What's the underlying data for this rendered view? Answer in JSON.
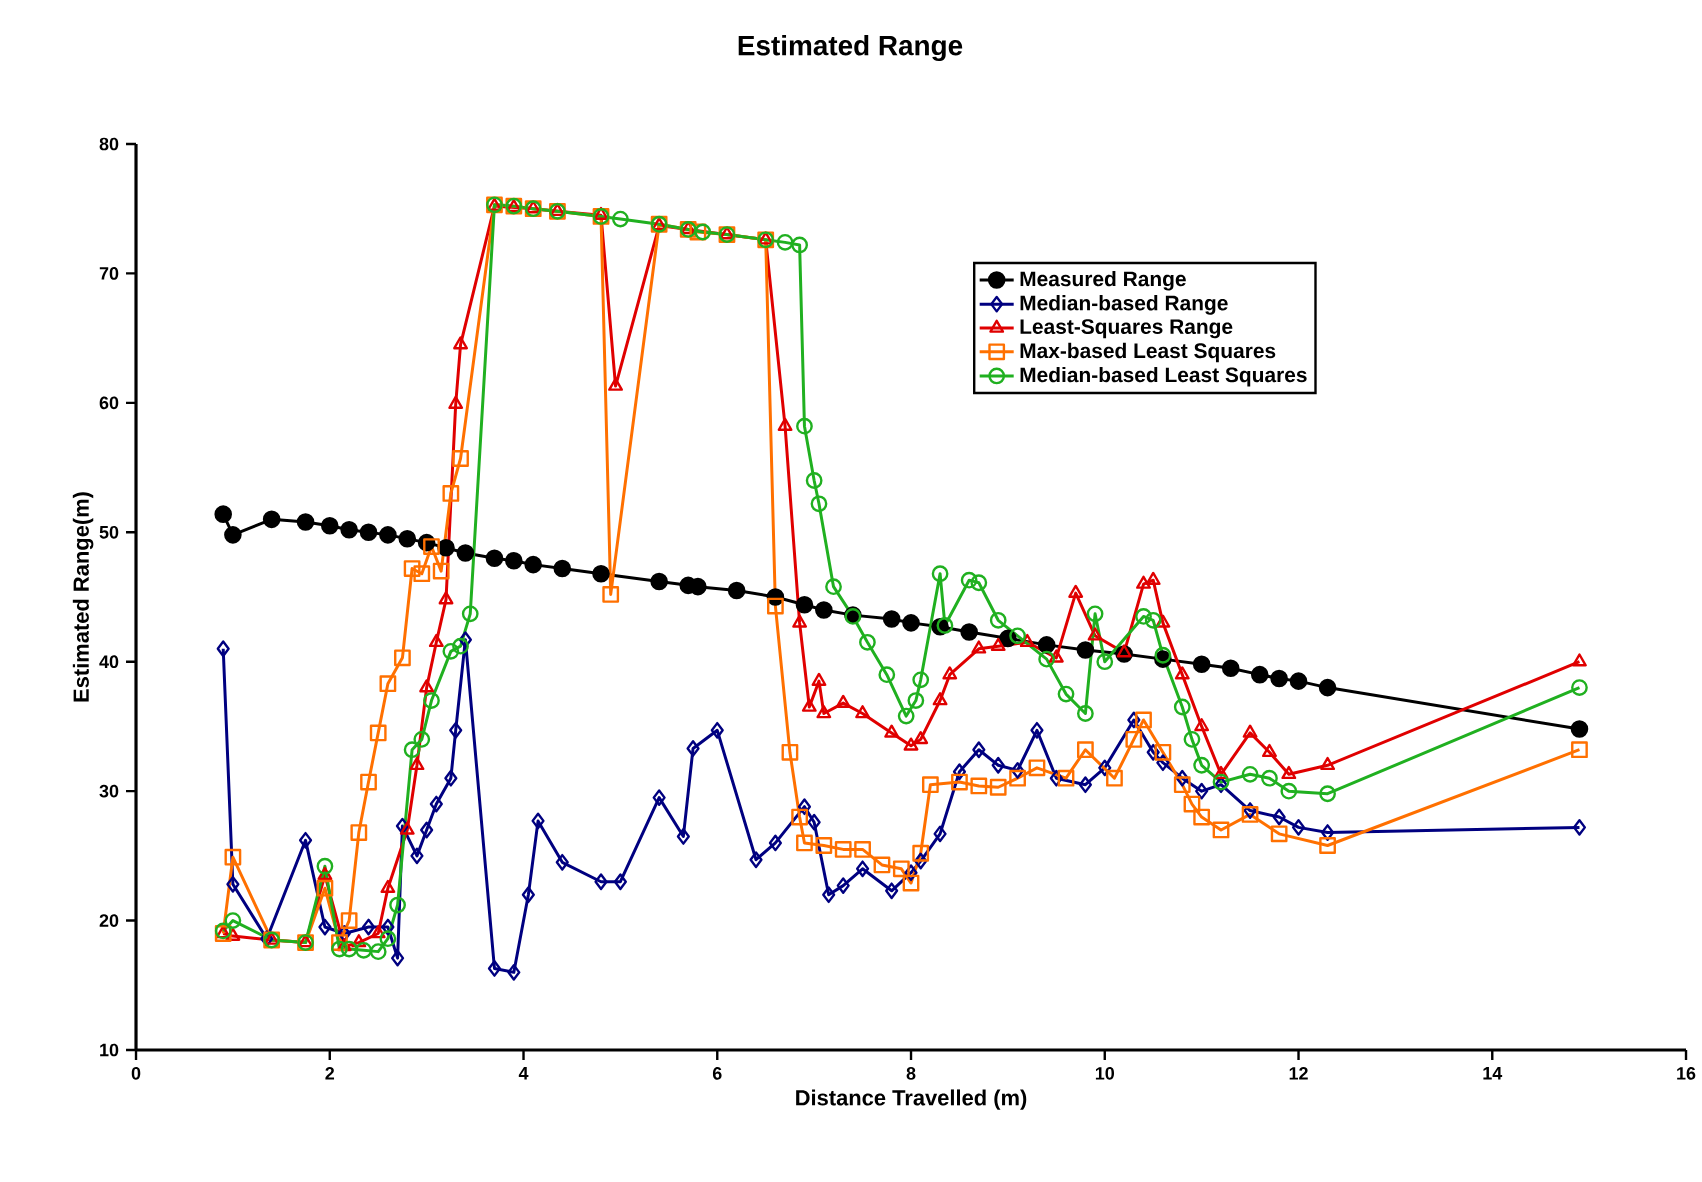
{
  "chart_data": {
    "type": "line",
    "title": "Estimated Range",
    "xlabel": "Distance Travelled (m)",
    "ylabel": "Estimated Range(m)",
    "xlim": [
      0,
      16
    ],
    "ylim": [
      10,
      80
    ],
    "xticks": [
      0,
      2,
      4,
      6,
      8,
      10,
      12,
      14,
      16
    ],
    "yticks": [
      10,
      20,
      30,
      40,
      50,
      60,
      70,
      80
    ],
    "grid": false,
    "legend": "top right",
    "line_style": "solid",
    "series": [
      {
        "name": "Measured Range",
        "color": "#000000",
        "marker": "circle",
        "x": [
          0.9,
          1.0,
          1.4,
          1.75,
          2.0,
          2.2,
          2.4,
          2.6,
          2.8,
          3.0,
          3.2,
          3.4,
          3.7,
          3.9,
          4.1,
          4.4,
          4.8,
          5.4,
          5.7,
          5.8,
          6.2,
          6.6,
          6.9,
          7.1,
          7.4,
          7.8,
          8.0,
          8.3,
          8.6,
          9.0,
          9.4,
          9.8,
          10.2,
          10.6,
          11.0,
          11.3,
          11.6,
          11.8,
          12.0,
          12.3,
          14.9
        ],
        "values": [
          51.4,
          49.8,
          51,
          50.8,
          50.5,
          50.2,
          50,
          49.8,
          49.5,
          49.2,
          48.8,
          48.4,
          48,
          47.8,
          47.5,
          47.2,
          46.8,
          46.2,
          45.9,
          45.8,
          45.5,
          45,
          44.4,
          44,
          43.6,
          43.3,
          43,
          42.7,
          42.3,
          41.8,
          41.3,
          40.9,
          40.6,
          40.2,
          39.8,
          39.5,
          39,
          38.7,
          38.5,
          38,
          34.8
        ]
      },
      {
        "name": "Median-based Range",
        "color": "#000080",
        "marker": "diamond",
        "x": [
          0.9,
          1.0,
          1.35,
          1.75,
          1.95,
          2.15,
          2.4,
          2.6,
          2.7,
          2.75,
          2.9,
          3.0,
          3.1,
          3.25,
          3.3,
          3.4,
          3.7,
          3.9,
          4.05,
          4.15,
          4.4,
          4.8,
          5.0,
          5.4,
          5.65,
          5.75,
          6.0,
          6.4,
          6.6,
          6.9,
          7.0,
          7.15,
          7.3,
          7.5,
          7.8,
          8.0,
          8.1,
          8.3,
          8.5,
          8.7,
          8.9,
          9.1,
          9.3,
          9.5,
          9.8,
          10.0,
          10.3,
          10.5,
          10.6,
          10.8,
          11.0,
          11.2,
          11.5,
          11.8,
          12.0,
          12.3,
          14.9
        ],
        "values": [
          41,
          22.8,
          18.6,
          26.2,
          19.5,
          19,
          19.5,
          19.5,
          17.1,
          27.3,
          25,
          27,
          29,
          31,
          34.7,
          41.7,
          16.3,
          16,
          22,
          27.7,
          24.5,
          23,
          23,
          29.5,
          26.5,
          33.3,
          34.7,
          24.7,
          26,
          28.8,
          27.6,
          22,
          22.7,
          24,
          22.3,
          23.7,
          24.6,
          26.7,
          31.5,
          33.2,
          32,
          31.6,
          34.7,
          31,
          30.5,
          31.8,
          35.5,
          33,
          32.2,
          31,
          30,
          30.5,
          28.5,
          28,
          27.2,
          26.8,
          27.2
        ]
      },
      {
        "name": "Least-Squares Range",
        "color": "#e00000",
        "marker": "triangle",
        "x": [
          0.9,
          1.0,
          1.4,
          1.75,
          1.95,
          2.15,
          2.3,
          2.5,
          2.6,
          2.8,
          2.9,
          3.0,
          3.1,
          3.2,
          3.3,
          3.35,
          3.7,
          3.9,
          4.1,
          4.35,
          4.8,
          4.95,
          5.4,
          5.7,
          5.8,
          6.1,
          6.5,
          6.7,
          6.85,
          6.95,
          7.05,
          7.1,
          7.3,
          7.5,
          7.8,
          8.0,
          8.1,
          8.3,
          8.4,
          8.7,
          8.9,
          9.2,
          9.5,
          9.7,
          9.9,
          10.2,
          10.4,
          10.5,
          10.6,
          10.8,
          11.0,
          11.2,
          11.5,
          11.7,
          11.9,
          12.3,
          14.9
        ],
        "values": [
          19,
          18.8,
          18.5,
          18.3,
          23.5,
          18,
          18.3,
          19,
          22.5,
          27,
          32,
          38,
          41.5,
          44.8,
          59.9,
          64.5,
          75.2,
          75.1,
          75,
          74.8,
          74.5,
          61.3,
          73.7,
          73.4,
          null,
          73,
          72.6,
          58.2,
          43,
          36.5,
          38.5,
          36,
          36.8,
          36,
          34.5,
          33.5,
          34,
          37,
          39,
          41,
          41.2,
          41.5,
          40.3,
          45.3,
          42,
          40.7,
          46,
          46.3,
          43,
          39,
          35,
          31.3,
          34.5,
          33,
          31.3,
          32,
          40
        ]
      },
      {
        "name": "Max-based Least Squares",
        "color": "#ff7000",
        "marker": "square",
        "x": [
          0.9,
          1.0,
          1.4,
          1.75,
          1.95,
          2.1,
          2.2,
          2.3,
          2.4,
          2.5,
          2.6,
          2.75,
          2.85,
          2.95,
          3.05,
          3.15,
          3.25,
          3.35,
          3.7,
          3.9,
          4.1,
          4.35,
          4.8,
          4.9,
          5.4,
          5.7,
          5.8,
          6.1,
          6.5,
          6.6,
          6.75,
          6.85,
          6.9,
          7.1,
          7.3,
          7.5,
          7.7,
          7.9,
          8.0,
          8.1,
          8.2,
          8.5,
          8.7,
          8.9,
          9.1,
          9.3,
          9.6,
          9.8,
          10.1,
          10.3,
          10.4,
          10.6,
          10.8,
          10.9,
          11.0,
          11.2,
          11.5,
          11.8,
          12.3,
          14.9
        ],
        "values": [
          19,
          24.9,
          18.5,
          18.3,
          22.5,
          18.3,
          20,
          26.8,
          30.7,
          34.5,
          38.3,
          40.3,
          47.2,
          46.8,
          48.9,
          47,
          53,
          55.7,
          75.3,
          75.2,
          75,
          74.8,
          74.4,
          45.2,
          73.8,
          73.4,
          73.2,
          73,
          72.6,
          44.3,
          33,
          28,
          26,
          25.8,
          25.5,
          25.5,
          24.3,
          24,
          22.9,
          25.2,
          30.5,
          30.7,
          30.4,
          30.3,
          31,
          31.8,
          31,
          33.2,
          31,
          34,
          35.5,
          33,
          30.5,
          29,
          28,
          27,
          28.2,
          26.7,
          25.8,
          33.2
        ]
      },
      {
        "name": "Median-based Least Squares",
        "color": "#20b020",
        "marker": "circle open",
        "x": [
          0.9,
          1.0,
          1.4,
          1.75,
          1.95,
          2.1,
          2.2,
          2.35,
          2.5,
          2.6,
          2.7,
          2.85,
          2.95,
          3.05,
          3.25,
          3.35,
          3.45,
          3.7,
          3.9,
          4.1,
          4.35,
          4.8,
          5.0,
          5.4,
          5.7,
          5.85,
          6.1,
          6.5,
          6.7,
          6.85,
          6.9,
          7.0,
          7.05,
          7.2,
          7.4,
          7.55,
          7.75,
          7.95,
          8.05,
          8.1,
          8.3,
          8.35,
          8.6,
          8.7,
          8.9,
          9.1,
          9.4,
          9.6,
          9.8,
          9.9,
          10.0,
          10.4,
          10.5,
          10.6,
          10.8,
          10.9,
          11.0,
          11.2,
          11.5,
          11.7,
          11.9,
          12.3,
          14.9
        ],
        "values": [
          19.2,
          20,
          18.5,
          18.3,
          24.2,
          17.8,
          17.8,
          17.7,
          17.6,
          18.6,
          21.2,
          33.2,
          34,
          37,
          40.8,
          41.2,
          43.7,
          75.3,
          75.2,
          75,
          74.8,
          74.4,
          74.2,
          73.8,
          73.4,
          73.2,
          73,
          72.6,
          72.4,
          72.2,
          58.2,
          54,
          52.2,
          45.8,
          43.5,
          41.5,
          39,
          35.8,
          37,
          38.6,
          46.8,
          42.8,
          46.3,
          46.1,
          43.2,
          42,
          40.2,
          37.5,
          36,
          43.7,
          40,
          43.5,
          43.2,
          40.5,
          36.5,
          34,
          32,
          30.7,
          31.3,
          31,
          30,
          29.8,
          38
        ]
      }
    ]
  }
}
